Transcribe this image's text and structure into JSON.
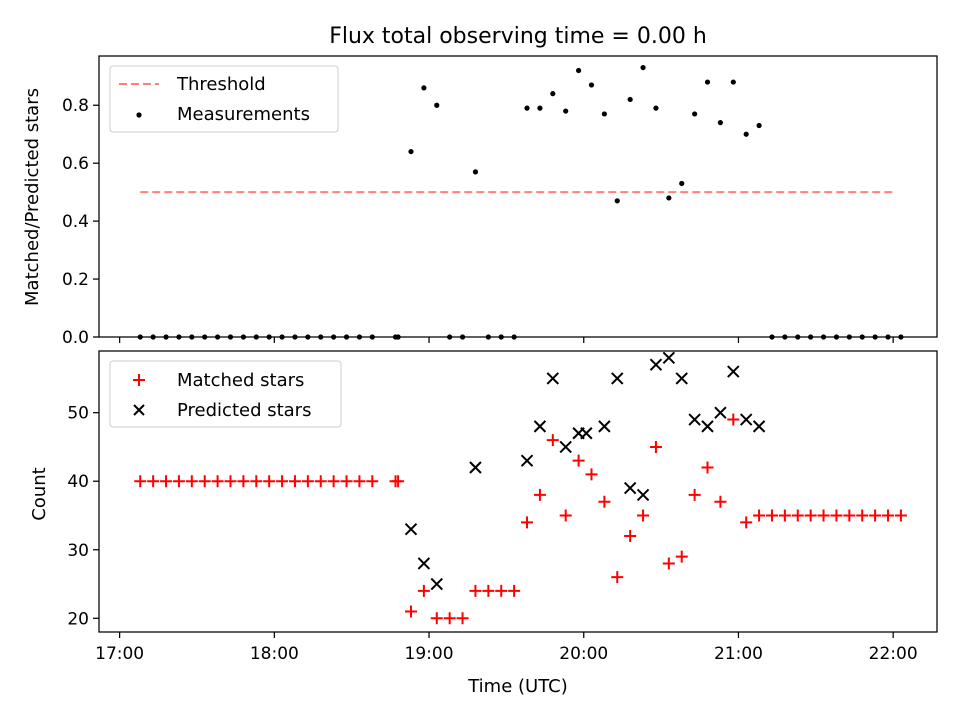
{
  "title": "Flux total observing time = 0.00 h",
  "chart_data": [
    {
      "type": "scatter",
      "ylabel": "Matched/Predicted stars",
      "xlabel": "",
      "xlim": [
        "16:52",
        "22:17"
      ],
      "ylim": [
        0,
        0.97
      ],
      "yticks": [
        0.0,
        0.2,
        0.4,
        0.6,
        0.8
      ],
      "ytick_labels": [
        "0.0",
        "0.2",
        "0.4",
        "0.6",
        "0.8"
      ],
      "legend": {
        "location": "upper left",
        "entries": [
          "Threshold",
          "Measurements"
        ]
      },
      "threshold": {
        "name": "Threshold",
        "y": 0.5,
        "x_start": "17:08",
        "x_end": "22:00",
        "color": "#ff7f7f",
        "style": "dashed"
      },
      "series": [
        {
          "name": "Measurements",
          "color": "#000000",
          "marker": "dot",
          "points": [
            [
              "17:08",
              0.0
            ],
            [
              "17:13",
              0.0
            ],
            [
              "17:18",
              0.0
            ],
            [
              "17:23",
              0.0
            ],
            [
              "17:28",
              0.0
            ],
            [
              "17:33",
              0.0
            ],
            [
              "17:38",
              0.0
            ],
            [
              "17:43",
              0.0
            ],
            [
              "17:48",
              0.0
            ],
            [
              "17:53",
              0.0
            ],
            [
              "17:58",
              0.0
            ],
            [
              "18:03",
              0.0
            ],
            [
              "18:08",
              0.0
            ],
            [
              "18:13",
              0.0
            ],
            [
              "18:18",
              0.0
            ],
            [
              "18:23",
              0.0
            ],
            [
              "18:28",
              0.0
            ],
            [
              "18:33",
              0.0
            ],
            [
              "18:38",
              0.0
            ],
            [
              "18:47",
              0.0
            ],
            [
              "18:48",
              0.0
            ],
            [
              "18:53",
              0.64
            ],
            [
              "18:58",
              0.86
            ],
            [
              "19:03",
              0.8
            ],
            [
              "19:08",
              0.0
            ],
            [
              "19:13",
              0.0
            ],
            [
              "19:18",
              0.57
            ],
            [
              "19:23",
              0.0
            ],
            [
              "19:28",
              0.0
            ],
            [
              "19:33",
              0.0
            ],
            [
              "19:38",
              0.79
            ],
            [
              "19:43",
              0.79
            ],
            [
              "19:48",
              0.84
            ],
            [
              "19:53",
              0.78
            ],
            [
              "19:58",
              0.92
            ],
            [
              "20:03",
              0.87
            ],
            [
              "20:08",
              0.77
            ],
            [
              "20:13",
              0.47
            ],
            [
              "20:18",
              0.82
            ],
            [
              "20:23",
              0.93
            ],
            [
              "20:28",
              0.79
            ],
            [
              "20:33",
              0.48
            ],
            [
              "20:38",
              0.53
            ],
            [
              "20:43",
              0.77
            ],
            [
              "20:48",
              0.88
            ],
            [
              "20:53",
              0.74
            ],
            [
              "20:58",
              0.88
            ],
            [
              "21:03",
              0.7
            ],
            [
              "21:08",
              0.73
            ],
            [
              "21:13",
              0.0
            ],
            [
              "21:18",
              0.0
            ],
            [
              "21:23",
              0.0
            ],
            [
              "21:28",
              0.0
            ],
            [
              "21:33",
              0.0
            ],
            [
              "21:38",
              0.0
            ],
            [
              "21:43",
              0.0
            ],
            [
              "21:48",
              0.0
            ],
            [
              "21:53",
              0.0
            ],
            [
              "21:58",
              0.0
            ],
            [
              "22:03",
              0.0
            ]
          ]
        }
      ],
      "grid": false
    },
    {
      "type": "scatter",
      "ylabel": "Count",
      "xlabel": "Time (UTC)",
      "xlim": [
        "16:52",
        "22:17"
      ],
      "ylim": [
        18,
        59
      ],
      "yticks": [
        20,
        30,
        40,
        50
      ],
      "xticks": [
        "17:00",
        "18:00",
        "19:00",
        "20:00",
        "21:00",
        "22:00"
      ],
      "legend": {
        "location": "upper left",
        "entries": [
          "Matched stars",
          "Predicted stars"
        ]
      },
      "series": [
        {
          "name": "Matched stars",
          "color": "#ff0000",
          "marker": "plus",
          "points": [
            [
              "17:08",
              40
            ],
            [
              "17:13",
              40
            ],
            [
              "17:18",
              40
            ],
            [
              "17:23",
              40
            ],
            [
              "17:28",
              40
            ],
            [
              "17:33",
              40
            ],
            [
              "17:38",
              40
            ],
            [
              "17:43",
              40
            ],
            [
              "17:48",
              40
            ],
            [
              "17:53",
              40
            ],
            [
              "17:58",
              40
            ],
            [
              "18:03",
              40
            ],
            [
              "18:08",
              40
            ],
            [
              "18:13",
              40
            ],
            [
              "18:18",
              40
            ],
            [
              "18:23",
              40
            ],
            [
              "18:28",
              40
            ],
            [
              "18:33",
              40
            ],
            [
              "18:38",
              40
            ],
            [
              "18:47",
              40
            ],
            [
              "18:48",
              40
            ],
            [
              "18:53",
              21
            ],
            [
              "18:58",
              24
            ],
            [
              "19:03",
              20
            ],
            [
              "19:08",
              20
            ],
            [
              "19:13",
              20
            ],
            [
              "19:18",
              24
            ],
            [
              "19:23",
              24
            ],
            [
              "19:28",
              24
            ],
            [
              "19:33",
              24
            ],
            [
              "19:38",
              34
            ],
            [
              "19:43",
              38
            ],
            [
              "19:48",
              46
            ],
            [
              "19:53",
              35
            ],
            [
              "19:58",
              43
            ],
            [
              "20:03",
              41
            ],
            [
              "20:08",
              37
            ],
            [
              "20:13",
              26
            ],
            [
              "20:18",
              32
            ],
            [
              "20:23",
              35
            ],
            [
              "20:28",
              45
            ],
            [
              "20:33",
              28
            ],
            [
              "20:38",
              29
            ],
            [
              "20:43",
              38
            ],
            [
              "20:48",
              42
            ],
            [
              "20:53",
              37
            ],
            [
              "20:58",
              49
            ],
            [
              "21:03",
              34
            ],
            [
              "21:08",
              35
            ],
            [
              "21:13",
              35
            ],
            [
              "21:18",
              35
            ],
            [
              "21:23",
              35
            ],
            [
              "21:28",
              35
            ],
            [
              "21:33",
              35
            ],
            [
              "21:38",
              35
            ],
            [
              "21:43",
              35
            ],
            [
              "21:48",
              35
            ],
            [
              "21:53",
              35
            ],
            [
              "21:58",
              35
            ],
            [
              "22:03",
              35
            ]
          ]
        },
        {
          "name": "Predicted stars",
          "color": "#000000",
          "marker": "x",
          "points": [
            [
              "18:53",
              33
            ],
            [
              "18:58",
              28
            ],
            [
              "19:03",
              25
            ],
            [
              "19:18",
              42
            ],
            [
              "19:38",
              43
            ],
            [
              "19:43",
              48
            ],
            [
              "19:48",
              55
            ],
            [
              "19:53",
              45
            ],
            [
              "19:58",
              47
            ],
            [
              "20:01",
              47
            ],
            [
              "20:08",
              48
            ],
            [
              "20:13",
              55
            ],
            [
              "20:18",
              39
            ],
            [
              "20:23",
              38
            ],
            [
              "20:28",
              57
            ],
            [
              "20:33",
              58
            ],
            [
              "20:38",
              55
            ],
            [
              "20:43",
              49
            ],
            [
              "20:48",
              48
            ],
            [
              "20:53",
              50
            ],
            [
              "20:58",
              56
            ],
            [
              "21:03",
              49
            ],
            [
              "21:08",
              48
            ]
          ]
        }
      ],
      "grid": false
    }
  ]
}
